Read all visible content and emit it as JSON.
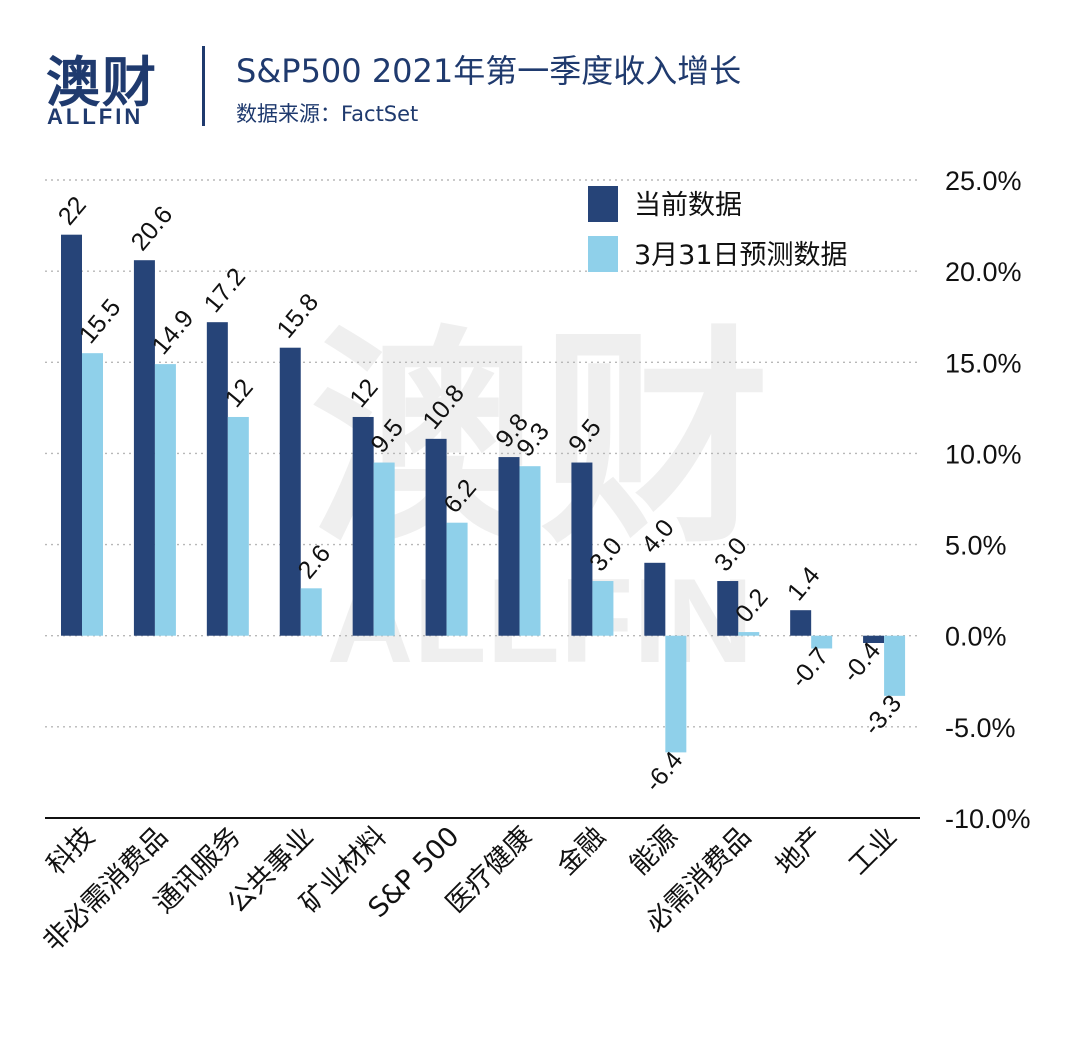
{
  "header": {
    "logo_cn": "澳财",
    "logo_en": "ALLFIN",
    "title": "S&P500 2021年第一季度收入增长",
    "source": "数据来源：FactSet"
  },
  "watermark": {
    "cn": "澳财",
    "en": "ALLFIN"
  },
  "colors": {
    "current": "#264478",
    "forecast": "#8fd0ea",
    "text": "#1f3a6e"
  },
  "chart_data": {
    "type": "bar",
    "categories": [
      "科技",
      "非必需消费品",
      "通讯服务",
      "公共事业",
      "矿业材料",
      "S&P 500",
      "医疗健康",
      "金融",
      "能源",
      "必需消费品",
      "地产",
      "工业"
    ],
    "series": [
      {
        "name": "当前数据",
        "values": [
          22,
          20.6,
          17.2,
          15.8,
          12,
          10.8,
          9.8,
          9.5,
          4.0,
          3.0,
          1.4,
          -0.4
        ],
        "labels": [
          "22",
          "20.6",
          "17.2",
          "15.8",
          "12",
          "10.8",
          "9.8",
          "9.5",
          "4.0",
          "3.0",
          "1.4",
          "-0.4"
        ]
      },
      {
        "name": "3月31日预测数据",
        "values": [
          15.5,
          14.9,
          12,
          2.6,
          9.5,
          6.2,
          9.3,
          3.0,
          -6.4,
          0.2,
          -0.7,
          -3.3
        ],
        "labels": [
          "15.5",
          "14.9",
          "12",
          "2.6",
          "9.5",
          "6.2",
          "9.3",
          "3.0",
          "-6.4",
          "0.2",
          "-0.7",
          "-3.3"
        ]
      }
    ],
    "ylim": [
      -10,
      25
    ],
    "yticks": [
      "25.0%",
      "20.0%",
      "15.0%",
      "10.0%",
      "5.0%",
      "0.0%",
      "-5.0%",
      "-10.0%"
    ],
    "ytick_values": [
      25,
      20,
      15,
      10,
      5,
      0,
      -5,
      -10
    ],
    "grid": true,
    "legend_position": "top-right"
  }
}
